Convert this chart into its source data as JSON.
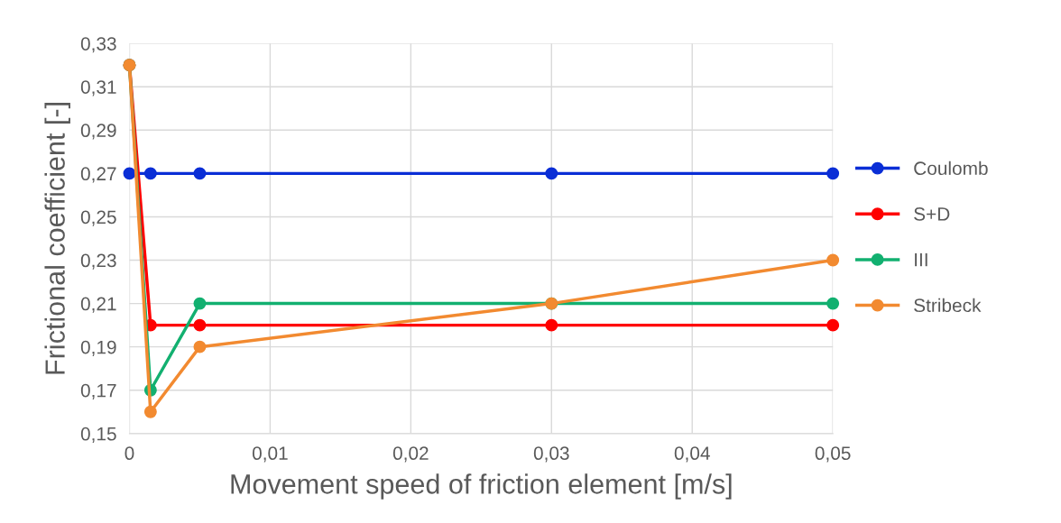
{
  "chart_data": {
    "type": "line",
    "xlabel": "Movement speed of friction element [m/s]",
    "ylabel": "Frictional coefficient [-]",
    "x": [
      0,
      0.0015,
      0.005,
      0.03,
      0.05
    ],
    "series": [
      {
        "name": "Coulomb",
        "color": "#0a2ed6",
        "values": [
          0.27,
          0.27,
          0.27,
          0.27,
          0.27
        ]
      },
      {
        "name": "S+D",
        "color": "#ff0000",
        "values": [
          0.32,
          0.2,
          0.2,
          0.2,
          0.2
        ]
      },
      {
        "name": "III",
        "color": "#12b070",
        "values": [
          0.32,
          0.17,
          0.21,
          0.21,
          0.21
        ]
      },
      {
        "name": "Stribeck",
        "color": "#f28a30",
        "values": [
          0.32,
          0.16,
          0.19,
          0.21,
          0.23
        ]
      }
    ],
    "xlim": [
      0,
      0.05
    ],
    "xticks": [
      0,
      {
        "value": 0.01,
        "label": "0,01"
      },
      {
        "value": 0.02,
        "label": "0,02"
      },
      {
        "value": 0.03,
        "label": "0,03"
      },
      {
        "value": 0.04,
        "label": "0,04"
      },
      {
        "value": 0.05,
        "label": "0,05"
      }
    ],
    "ylim": [
      0.15,
      0.33
    ],
    "yticks": [
      {
        "value": 0.15,
        "label": "0,15"
      },
      {
        "value": 0.17,
        "label": "0,17"
      },
      {
        "value": 0.19,
        "label": "0,19"
      },
      {
        "value": 0.21,
        "label": "0,21"
      },
      {
        "value": 0.23,
        "label": "0,23"
      },
      {
        "value": 0.25,
        "label": "0,25"
      },
      {
        "value": 0.27,
        "label": "0,27"
      },
      {
        "value": 0.29,
        "label": "0,29"
      },
      {
        "value": 0.31,
        "label": "0,31"
      },
      {
        "value": 0.33,
        "label": "0,33"
      }
    ],
    "grid": true,
    "legend": "right",
    "marker": "circle",
    "line_style": "solid"
  }
}
